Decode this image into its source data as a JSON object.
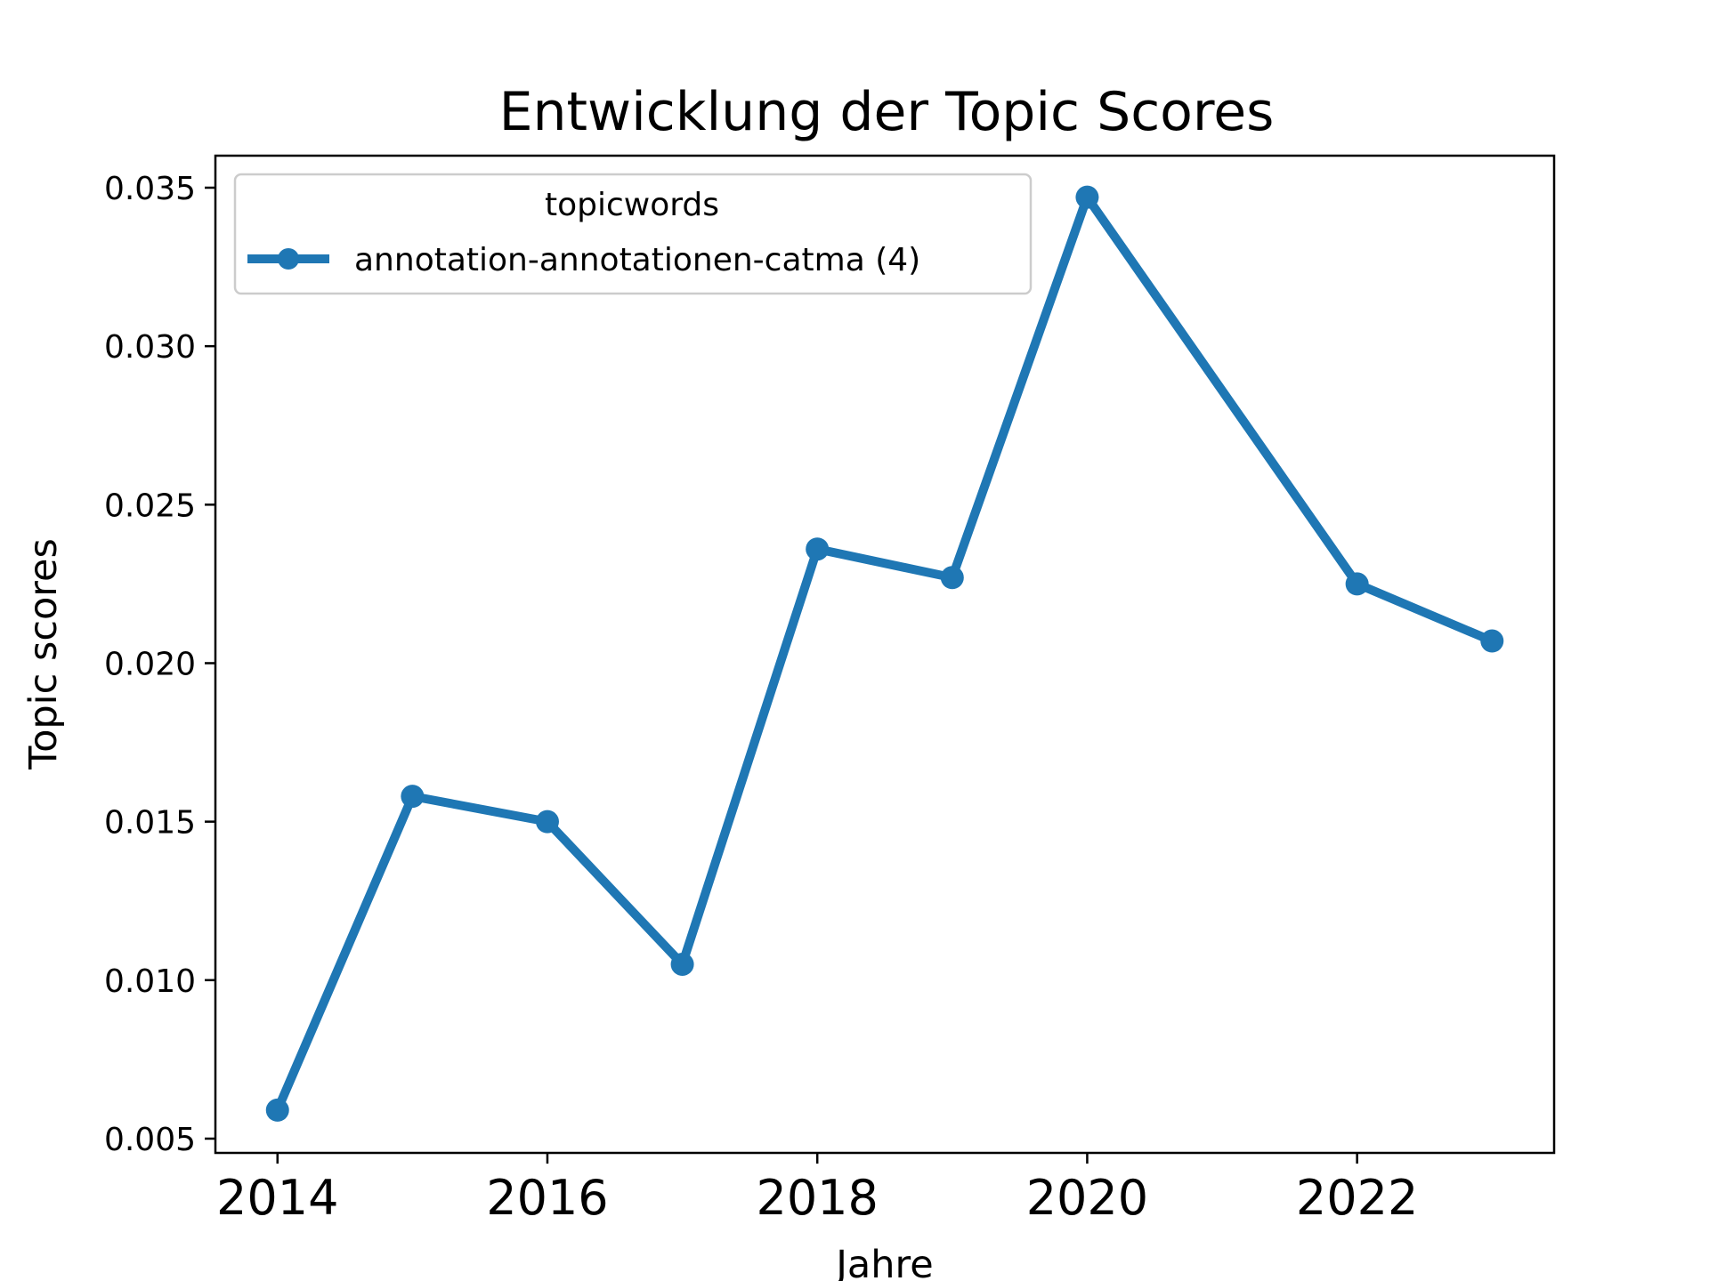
{
  "chart_data": {
    "type": "line",
    "title": "Entwicklung der Topic Scores",
    "xlabel": "Jahre",
    "ylabel": "Topic scores",
    "x": [
      2014,
      2015,
      2016,
      2017,
      2018,
      2019,
      2020,
      2022,
      2023
    ],
    "series": [
      {
        "name": "annotation-annotationen-catma (4)",
        "values": [
          0.0059,
          0.0158,
          0.015,
          0.0105,
          0.0236,
          0.0227,
          0.0347,
          0.0225,
          0.0207
        ],
        "color": "#1f77b4",
        "marker": "circle"
      }
    ],
    "xlim": [
      2013.54,
      2023.46
    ],
    "ylim": [
      0.00455,
      0.03601
    ],
    "xticks": [
      2014,
      2016,
      2018,
      2020,
      2022
    ],
    "xtick_labels": [
      "2014",
      "2016",
      "2018",
      "2020",
      "2022"
    ],
    "yticks": [
      0.005,
      0.01,
      0.015,
      0.02,
      0.025,
      0.03,
      0.035
    ],
    "ytick_labels": [
      "0.005",
      "0.010",
      "0.015",
      "0.020",
      "0.025",
      "0.030",
      "0.035"
    ],
    "legend": {
      "title": "topicwords",
      "placement": "upper-left"
    },
    "grid": false
  }
}
